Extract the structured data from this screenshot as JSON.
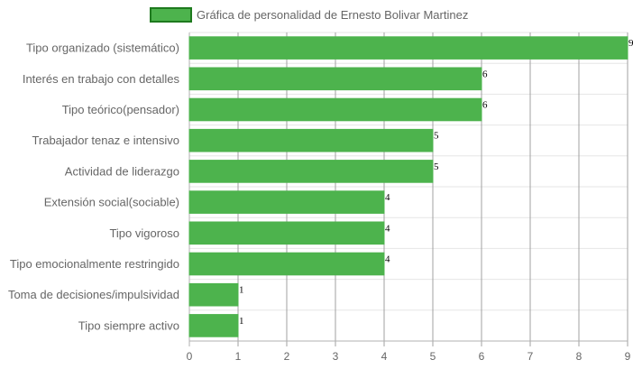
{
  "chart_data": {
    "type": "bar",
    "orientation": "horizontal",
    "categories": [
      "Tipo organizado (sistemático)",
      "Interés en trabajo con detalles",
      "Tipo teórico(pensador)",
      "Trabajador tenaz e intensivo",
      "Actividad de liderazgo",
      "Extensión social(sociable)",
      "Tipo vigoroso",
      "Tipo emocionalmente restringido",
      "Toma de decisiones/impulsividad",
      "Tipo siempre activo"
    ],
    "series": [
      {
        "name": "Gráfica de personalidad de Ernesto Bolivar Martinez",
        "values": [
          9,
          6,
          6,
          5,
          5,
          4,
          4,
          4,
          1,
          1
        ],
        "color": "#4db34d",
        "border_color": "#1e7a1e"
      }
    ],
    "xlim": [
      0,
      9
    ],
    "x_ticks": [
      "0",
      "1",
      "2",
      "3",
      "4",
      "5",
      "6",
      "7",
      "8",
      "9"
    ],
    "grid": true,
    "legend_position": "top",
    "data_labels": true
  }
}
